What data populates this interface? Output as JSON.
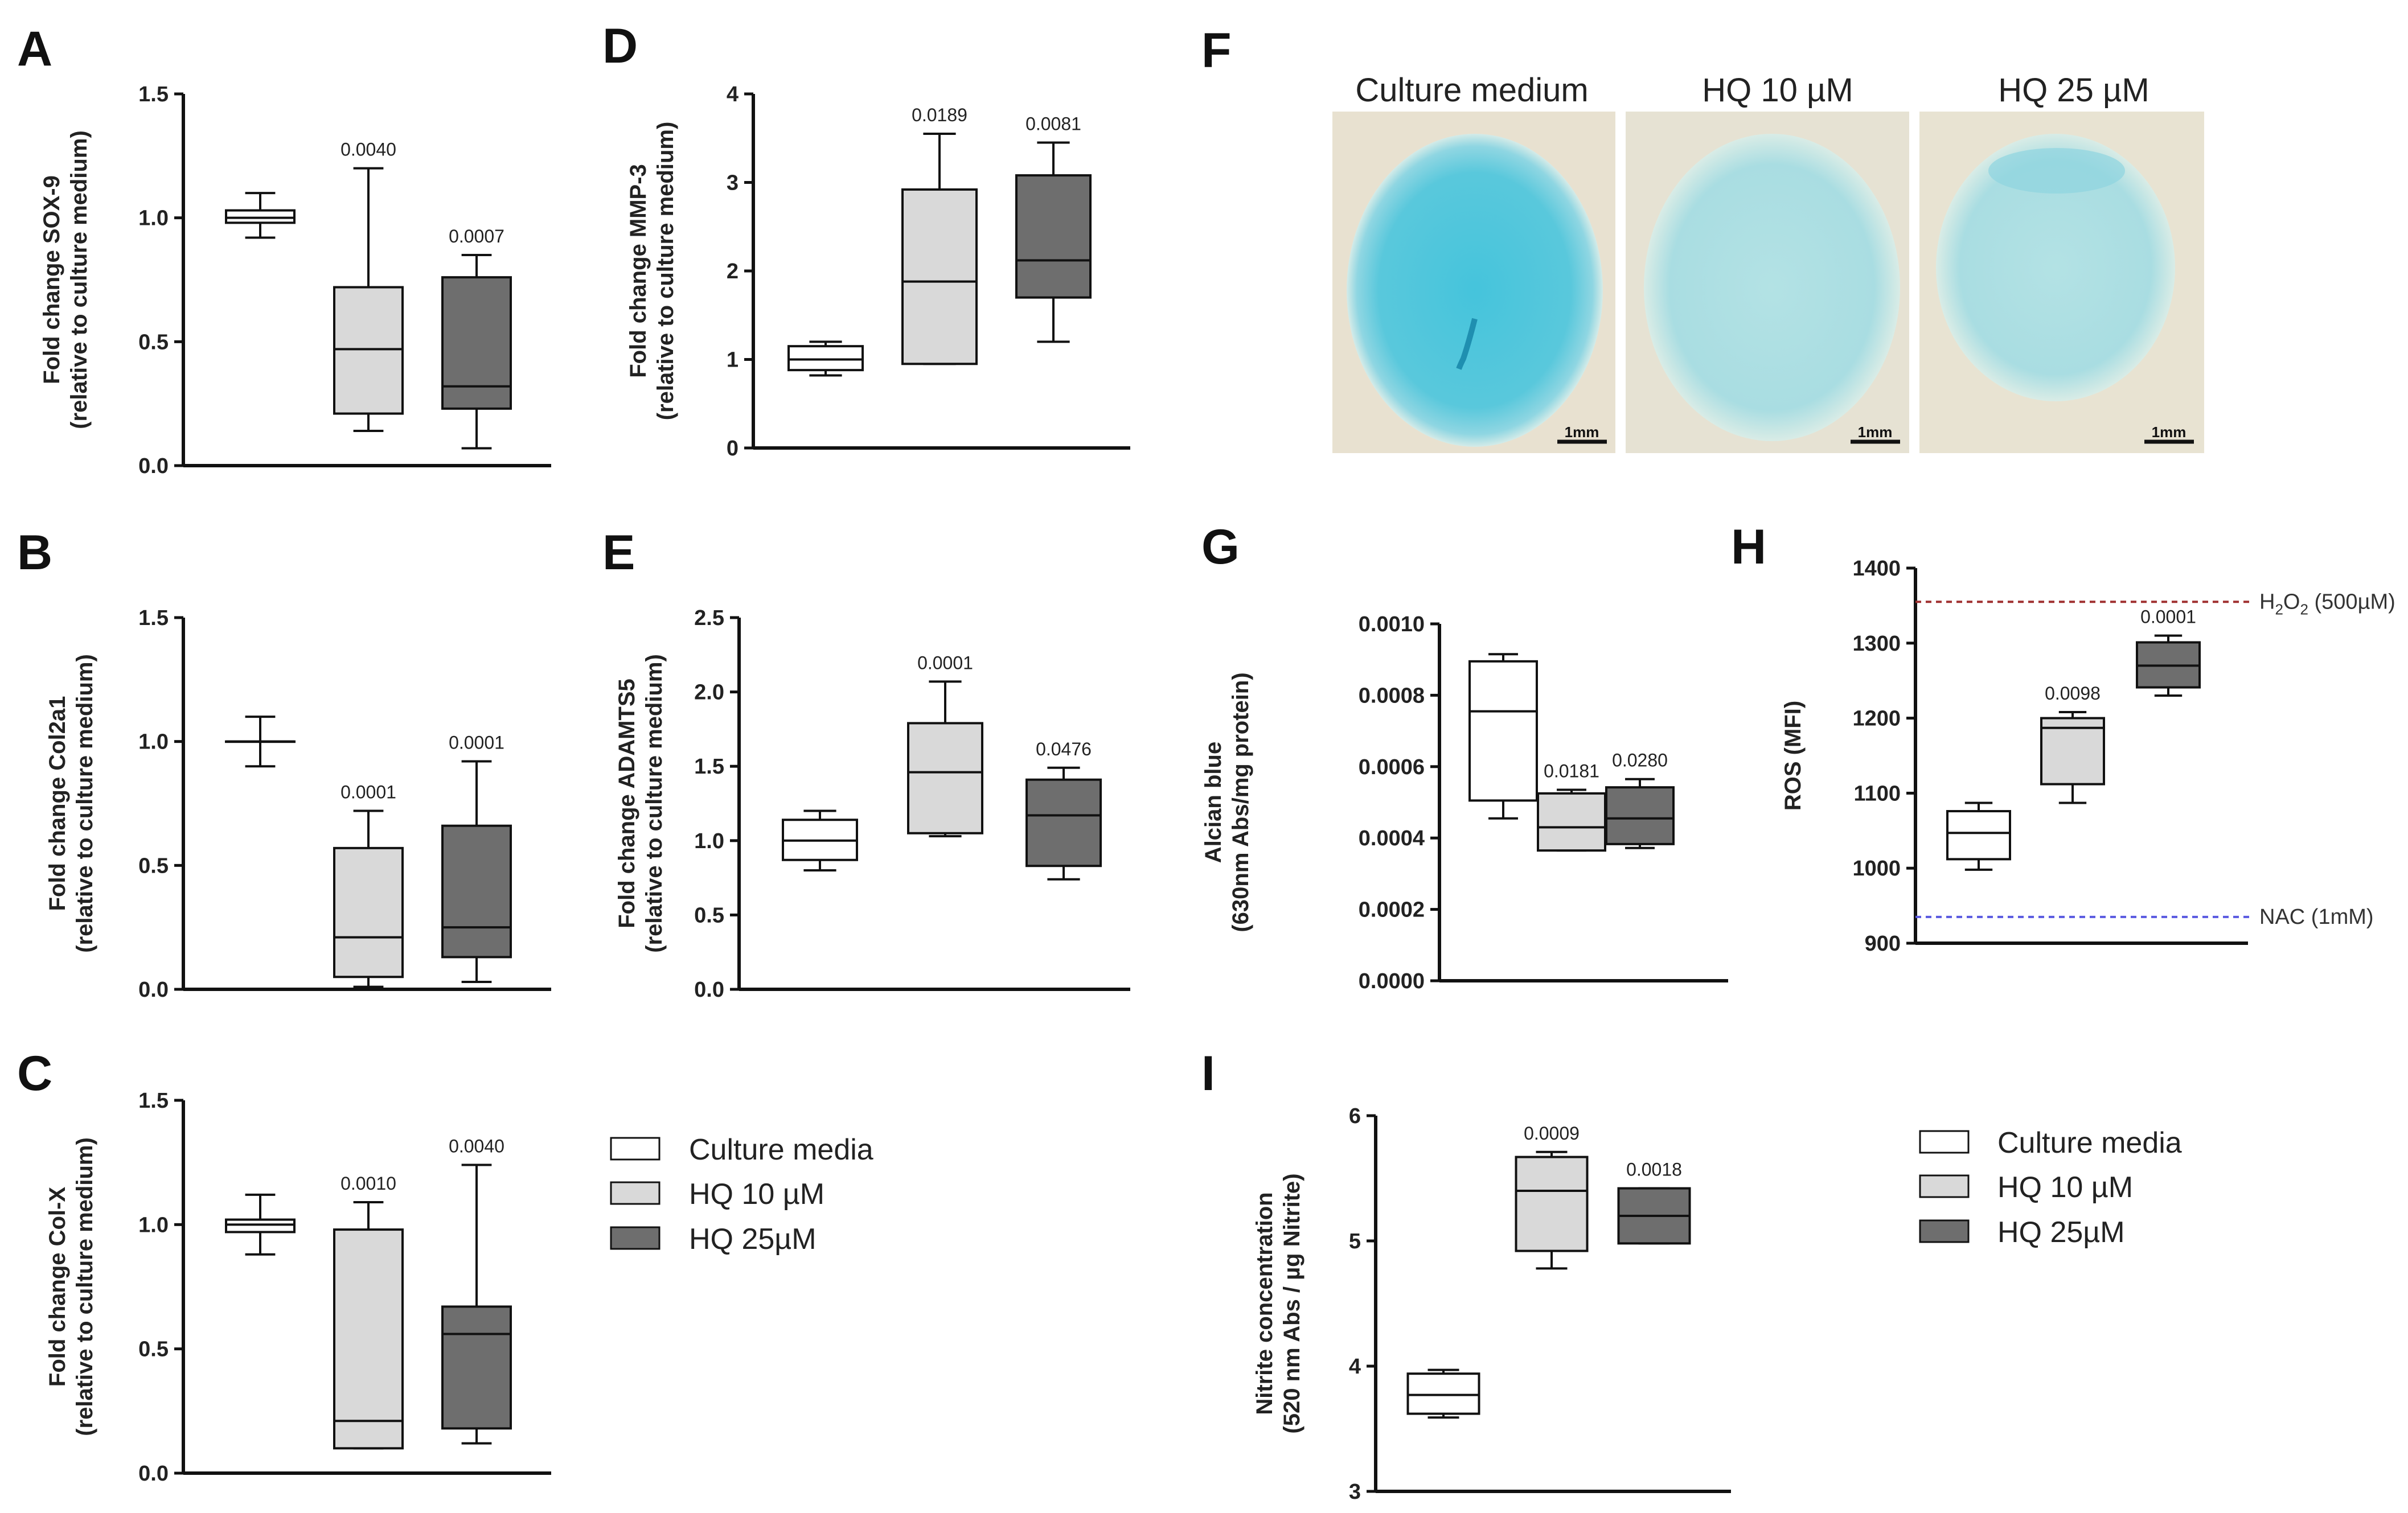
{
  "figure": {
    "legend_left": {
      "items": [
        {
          "label": "Culture media",
          "color": "#ffffff"
        },
        {
          "label": "HQ 10 µM",
          "color": "#d9d9d9"
        },
        {
          "label": "HQ 25µM",
          "color": "#6e6e6e"
        }
      ]
    },
    "legend_right": {
      "items": [
        {
          "label": "Culture media",
          "color": "#ffffff"
        },
        {
          "label": "HQ 10 µM",
          "color": "#d9d9d9"
        },
        {
          "label": "HQ 25µM",
          "color": "#6e6e6e"
        }
      ]
    },
    "panel_f": {
      "letter": "F",
      "images": [
        {
          "title": "Culture medium",
          "scale": "1mm",
          "stain": "strong"
        },
        {
          "title": "HQ 10 µM",
          "scale": "1mm",
          "stain": "faint"
        },
        {
          "title": "HQ 25 µM",
          "scale": "1mm",
          "stain": "faint"
        }
      ]
    }
  },
  "chart_data": [
    {
      "id": "A",
      "letter": "A",
      "type": "box",
      "ylabel": [
        "Fold change SOX-9",
        "(relative to culture medium)"
      ],
      "ylim": [
        0,
        1.5
      ],
      "ticks": [
        0.0,
        0.5,
        1.0,
        1.5
      ],
      "tick_labels": [
        "0.0",
        "0.5",
        "1.0",
        "1.5"
      ],
      "boxes": [
        {
          "group": "Culture media",
          "min": 0.92,
          "q1": 0.98,
          "median": 1.0,
          "q3": 1.03,
          "max": 1.1,
          "pval": ""
        },
        {
          "group": "HQ 10 µM",
          "min": 0.14,
          "q1": 0.21,
          "median": 0.47,
          "q3": 0.72,
          "max": 1.2,
          "pval": "0.0040"
        },
        {
          "group": "HQ 25µM",
          "min": 0.07,
          "q1": 0.23,
          "median": 0.32,
          "q3": 0.76,
          "max": 0.85,
          "pval": "0.0007"
        }
      ]
    },
    {
      "id": "B",
      "letter": "B",
      "type": "box",
      "ylabel": [
        "Fold change Col2a1",
        "(relative to culture medium)"
      ],
      "ylim": [
        0,
        1.5
      ],
      "ticks": [
        0.0,
        0.5,
        1.0,
        1.5
      ],
      "tick_labels": [
        "0.0",
        "0.5",
        "1.0",
        "1.5"
      ],
      "boxes": [
        {
          "group": "Culture media",
          "min": 0.9,
          "q1": 1.0,
          "median": 1.0,
          "q3": 1.0,
          "max": 1.1,
          "pval": ""
        },
        {
          "group": "HQ 10 µM",
          "min": 0.01,
          "q1": 0.05,
          "median": 0.21,
          "q3": 0.57,
          "max": 0.72,
          "pval": "0.0001"
        },
        {
          "group": "HQ 25µM",
          "min": 0.03,
          "q1": 0.13,
          "median": 0.25,
          "q3": 0.66,
          "max": 0.92,
          "pval": "0.0001"
        }
      ]
    },
    {
      "id": "C",
      "letter": "C",
      "type": "box",
      "ylabel": [
        "Fold change Col-X",
        "(relative to culture medium)"
      ],
      "ylim": [
        0,
        1.5
      ],
      "ticks": [
        0.0,
        0.5,
        1.0,
        1.5
      ],
      "tick_labels": [
        "0.0",
        "0.5",
        "1.0",
        "1.5"
      ],
      "boxes": [
        {
          "group": "Culture media",
          "min": 0.88,
          "q1": 0.97,
          "median": 1.0,
          "q3": 1.02,
          "max": 1.12,
          "pval": ""
        },
        {
          "group": "HQ 10 µM",
          "min": 0.1,
          "q1": 0.1,
          "median": 0.21,
          "q3": 0.98,
          "max": 1.09,
          "pval": "0.0010"
        },
        {
          "group": "HQ 25µM",
          "min": 0.12,
          "q1": 0.18,
          "median": 0.56,
          "q3": 0.67,
          "max": 1.24,
          "pval": "0.0040"
        }
      ]
    },
    {
      "id": "D",
      "letter": "D",
      "type": "box",
      "ylabel": [
        "Fold change MMP-3",
        "(relative to culture medium)"
      ],
      "ylim": [
        0,
        4
      ],
      "ticks": [
        0,
        1,
        2,
        3,
        4
      ],
      "tick_labels": [
        "0",
        "1",
        "2",
        "3",
        "4"
      ],
      "boxes": [
        {
          "group": "Culture media",
          "min": 0.82,
          "q1": 0.88,
          "median": 1.0,
          "q3": 1.15,
          "max": 1.2,
          "pval": ""
        },
        {
          "group": "HQ 10 µM",
          "min": 0.95,
          "q1": 0.95,
          "median": 1.88,
          "q3": 2.92,
          "max": 3.55,
          "pval": "0.0189"
        },
        {
          "group": "HQ 25µM",
          "min": 1.2,
          "q1": 1.7,
          "median": 2.12,
          "q3": 3.08,
          "max": 3.45,
          "pval": "0.0081"
        }
      ]
    },
    {
      "id": "E",
      "letter": "E",
      "type": "box",
      "ylabel": [
        "Fold change ADAMTS5",
        "(relative to culture medium)"
      ],
      "ylim": [
        0,
        2.5
      ],
      "ticks": [
        0.0,
        0.5,
        1.0,
        1.5,
        2.0,
        2.5
      ],
      "tick_labels": [
        "0.0",
        "0.5",
        "1.0",
        "1.5",
        "2.0",
        "2.5"
      ],
      "boxes": [
        {
          "group": "Culture media",
          "min": 0.8,
          "q1": 0.87,
          "median": 1.0,
          "q3": 1.14,
          "max": 1.2,
          "pval": ""
        },
        {
          "group": "HQ 10 µM",
          "min": 1.03,
          "q1": 1.05,
          "median": 1.46,
          "q3": 1.79,
          "max": 2.07,
          "pval": "0.0001"
        },
        {
          "group": "HQ 25µM",
          "min": 0.74,
          "q1": 0.83,
          "median": 1.17,
          "q3": 1.41,
          "max": 1.49,
          "pval": "0.0476"
        }
      ]
    },
    {
      "id": "G",
      "letter": "G",
      "type": "box",
      "ylabel": [
        "Alcian blue",
        "(630nm Abs/mg protein)"
      ],
      "ylim": [
        0,
        0.001
      ],
      "ticks": [
        0.0,
        0.0002,
        0.0004,
        0.0006,
        0.0008,
        0.001
      ],
      "tick_labels": [
        "0.0000",
        "0.0002",
        "0.0004",
        "0.0006",
        "0.0008",
        "0.0010"
      ],
      "boxes": [
        {
          "group": "Culture media",
          "min": 0.000455,
          "q1": 0.000505,
          "median": 0.000755,
          "q3": 0.000895,
          "max": 0.000915,
          "pval": ""
        },
        {
          "group": "HQ 10 µM",
          "min": 0.000365,
          "q1": 0.000365,
          "median": 0.00043,
          "q3": 0.000525,
          "max": 0.000535,
          "pval": "0.0181"
        },
        {
          "group": "HQ 25µM",
          "min": 0.000372,
          "q1": 0.000383,
          "median": 0.000455,
          "q3": 0.000542,
          "max": 0.000565,
          "pval": "0.0280"
        }
      ]
    },
    {
      "id": "H",
      "letter": "H",
      "type": "box",
      "ylabel": [
        "ROS (MFI)"
      ],
      "ylim": [
        900,
        1400
      ],
      "ticks": [
        900,
        1000,
        1100,
        1200,
        1300,
        1400
      ],
      "tick_labels": [
        "900",
        "1000",
        "1100",
        "1200",
        "1300",
        "1400"
      ],
      "boxes": [
        {
          "group": "Culture media",
          "min": 998,
          "q1": 1012,
          "median": 1047,
          "q3": 1076,
          "max": 1087,
          "pval": ""
        },
        {
          "group": "HQ 10 µM",
          "min": 1087,
          "q1": 1112,
          "median": 1187,
          "q3": 1200,
          "max": 1208,
          "pval": "0.0098"
        },
        {
          "group": "HQ 25µM",
          "min": 1230,
          "q1": 1241,
          "median": 1270,
          "q3": 1301,
          "max": 1310,
          "pval": "0.0001"
        }
      ],
      "reference_lines": [
        {
          "label": "H2O2 (500µM)",
          "value": 1355,
          "color": "#a03030",
          "main": "H",
          "sub": "2",
          "mid": "O",
          "sub2": "2",
          "rest": " (500µM)"
        },
        {
          "label": "NAC (1mM)",
          "value": 935,
          "color": "#5a5ae0"
        }
      ]
    },
    {
      "id": "I",
      "letter": "I",
      "type": "box",
      "ylabel": [
        "Nitrite concentration",
        "(520 nm Abs / µg Nitrite)"
      ],
      "ylim": [
        3,
        6
      ],
      "ticks": [
        3,
        4,
        5,
        6
      ],
      "tick_labels": [
        "3",
        "4",
        "5",
        "6"
      ],
      "boxes": [
        {
          "group": "Culture media",
          "min": 3.59,
          "q1": 3.62,
          "median": 3.77,
          "q3": 3.94,
          "max": 3.97,
          "pval": ""
        },
        {
          "group": "HQ 10 µM",
          "min": 4.78,
          "q1": 4.92,
          "median": 5.4,
          "q3": 5.67,
          "max": 5.71,
          "pval": "0.0009"
        },
        {
          "group": "HQ 25µM",
          "min": 4.98,
          "q1": 4.98,
          "median": 5.2,
          "q3": 5.42,
          "max": 5.42,
          "pval": "0.0018"
        }
      ]
    }
  ]
}
